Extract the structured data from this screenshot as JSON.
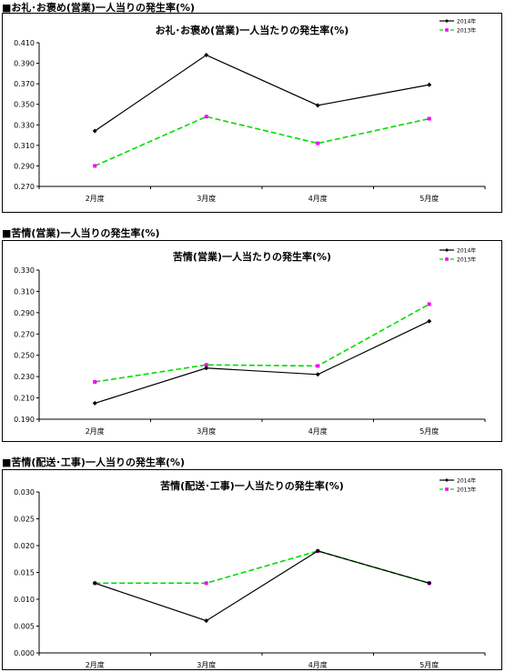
{
  "page": {
    "sections": [
      {
        "heading": "■お礼･お褒め(営業)一人当りの発生率(%)"
      },
      {
        "heading": "■苦情(営業)一人当りの発生率(%)"
      },
      {
        "heading": "■苦情(配送･工事)一人当りの発生率(%)"
      }
    ]
  },
  "chart_data": [
    {
      "type": "line",
      "title": "お礼･お褒め(営業)一人当たりの発生率(%)",
      "categories": [
        "2月度",
        "3月度",
        "4月度",
        "5月度"
      ],
      "series": [
        {
          "name": "2014年",
          "values": [
            0.324,
            0.398,
            0.349,
            0.369
          ],
          "color": "#000000",
          "style": "solid",
          "marker": "diamond"
        },
        {
          "name": "2013年",
          "values": [
            0.29,
            0.338,
            0.312,
            0.336
          ],
          "color": "#00dd00",
          "style": "dashed",
          "marker": "square",
          "marker_color": "#ff00ff"
        }
      ],
      "ylim": [
        0.27,
        0.41
      ],
      "yticks": [
        "0.410",
        "0.390",
        "0.370",
        "0.350",
        "0.330",
        "0.310",
        "0.290",
        "0.270"
      ],
      "grid": false,
      "legend": "top-right"
    },
    {
      "type": "line",
      "title": "苦情(営業)一人当たりの発生率(%)",
      "categories": [
        "2月度",
        "3月度",
        "4月度",
        "5月度"
      ],
      "series": [
        {
          "name": "2014年",
          "values": [
            0.205,
            0.238,
            0.232,
            0.282
          ],
          "color": "#000000",
          "style": "solid",
          "marker": "diamond"
        },
        {
          "name": "2013年",
          "values": [
            0.225,
            0.241,
            0.24,
            0.298
          ],
          "color": "#00dd00",
          "style": "dashed",
          "marker": "square",
          "marker_color": "#ff00ff"
        }
      ],
      "ylim": [
        0.19,
        0.33
      ],
      "yticks": [
        "0.330",
        "0.310",
        "0.290",
        "0.270",
        "0.250",
        "0.230",
        "0.210",
        "0.190"
      ],
      "grid": false,
      "legend": "top-right"
    },
    {
      "type": "line",
      "title": "苦情(配送･工事)一人当たりの発生率(%)",
      "categories": [
        "2月度",
        "3月度",
        "4月度",
        "5月度"
      ],
      "series": [
        {
          "name": "2014年",
          "values": [
            0.013,
            0.006,
            0.019,
            0.013
          ],
          "color": "#000000",
          "style": "solid",
          "marker": "diamond"
        },
        {
          "name": "2013年",
          "values": [
            0.013,
            0.013,
            0.019,
            0.013
          ],
          "color": "#00dd00",
          "style": "dashed",
          "marker": "square",
          "marker_color": "#ff00ff"
        }
      ],
      "ylim": [
        0.0,
        0.03
      ],
      "yticks": [
        "0.030",
        "0.025",
        "0.020",
        "0.015",
        "0.010",
        "0.005",
        "0.000"
      ],
      "grid": false,
      "legend": "top-right"
    }
  ]
}
